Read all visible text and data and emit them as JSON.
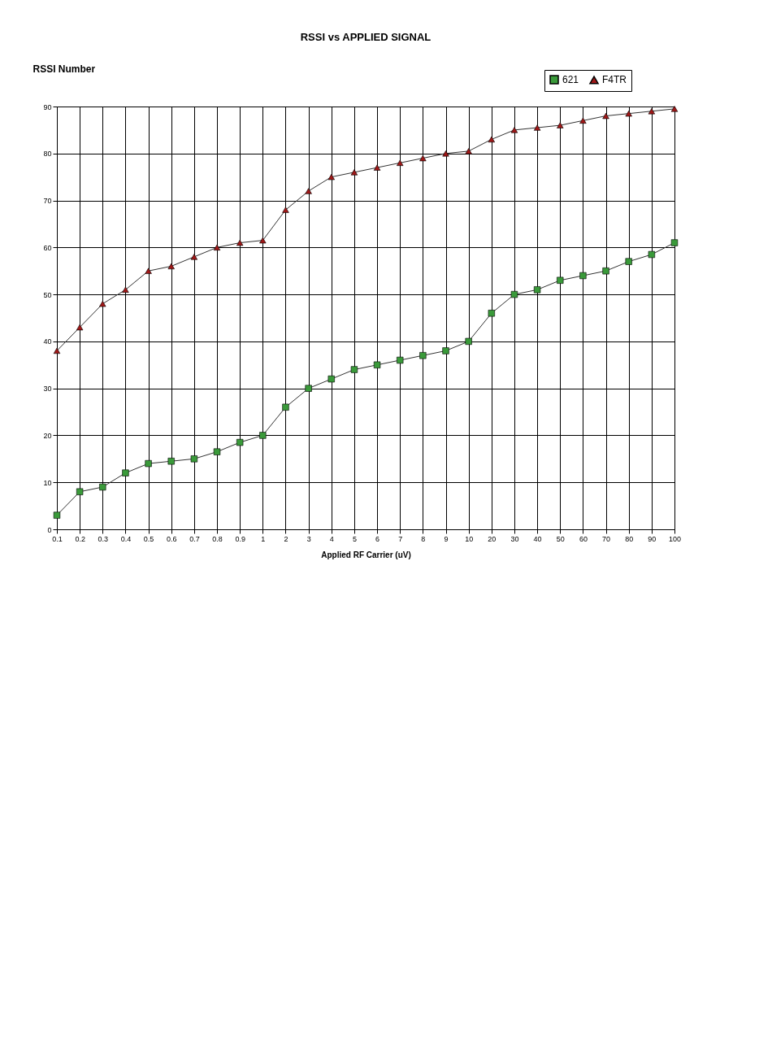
{
  "chart_data": {
    "type": "line",
    "title": "RSSI vs APPLIED SIGNAL",
    "xlabel": "Applied RF Carrier (uV)",
    "ylabel": "RSSI Number",
    "categories": [
      "0.1",
      "0.2",
      "0.3",
      "0.4",
      "0.5",
      "0.6",
      "0.7",
      "0.8",
      "0.9",
      "1",
      "2",
      "3",
      "4",
      "5",
      "6",
      "7",
      "8",
      "9",
      "10",
      "20",
      "30",
      "40",
      "50",
      "60",
      "70",
      "80",
      "90",
      "100"
    ],
    "series": [
      {
        "name": "621",
        "color": "#3a9a3a",
        "marker": "square",
        "values": [
          3,
          8,
          9,
          12,
          14,
          14.5,
          15,
          16.5,
          18.5,
          20,
          26,
          30,
          32,
          34,
          35,
          36,
          37,
          38,
          40,
          46,
          50,
          51,
          53,
          54,
          55,
          57,
          58.5,
          61
        ]
      },
      {
        "name": "F4TR",
        "color": "#a01818",
        "marker": "triangle",
        "values": [
          38,
          43,
          48,
          51,
          55,
          56,
          58,
          60,
          61,
          61.5,
          68,
          72,
          75,
          76,
          77,
          78,
          79,
          80,
          80.5,
          83,
          85,
          85.5,
          86,
          87,
          88,
          88.5,
          89,
          89.5
        ]
      }
    ],
    "ylim": [
      0,
      90
    ],
    "yticks": [
      0,
      10,
      20,
      30,
      40,
      50,
      60,
      70,
      80,
      90
    ],
    "grid": true,
    "legend": "top right",
    "line_style": "solid"
  }
}
